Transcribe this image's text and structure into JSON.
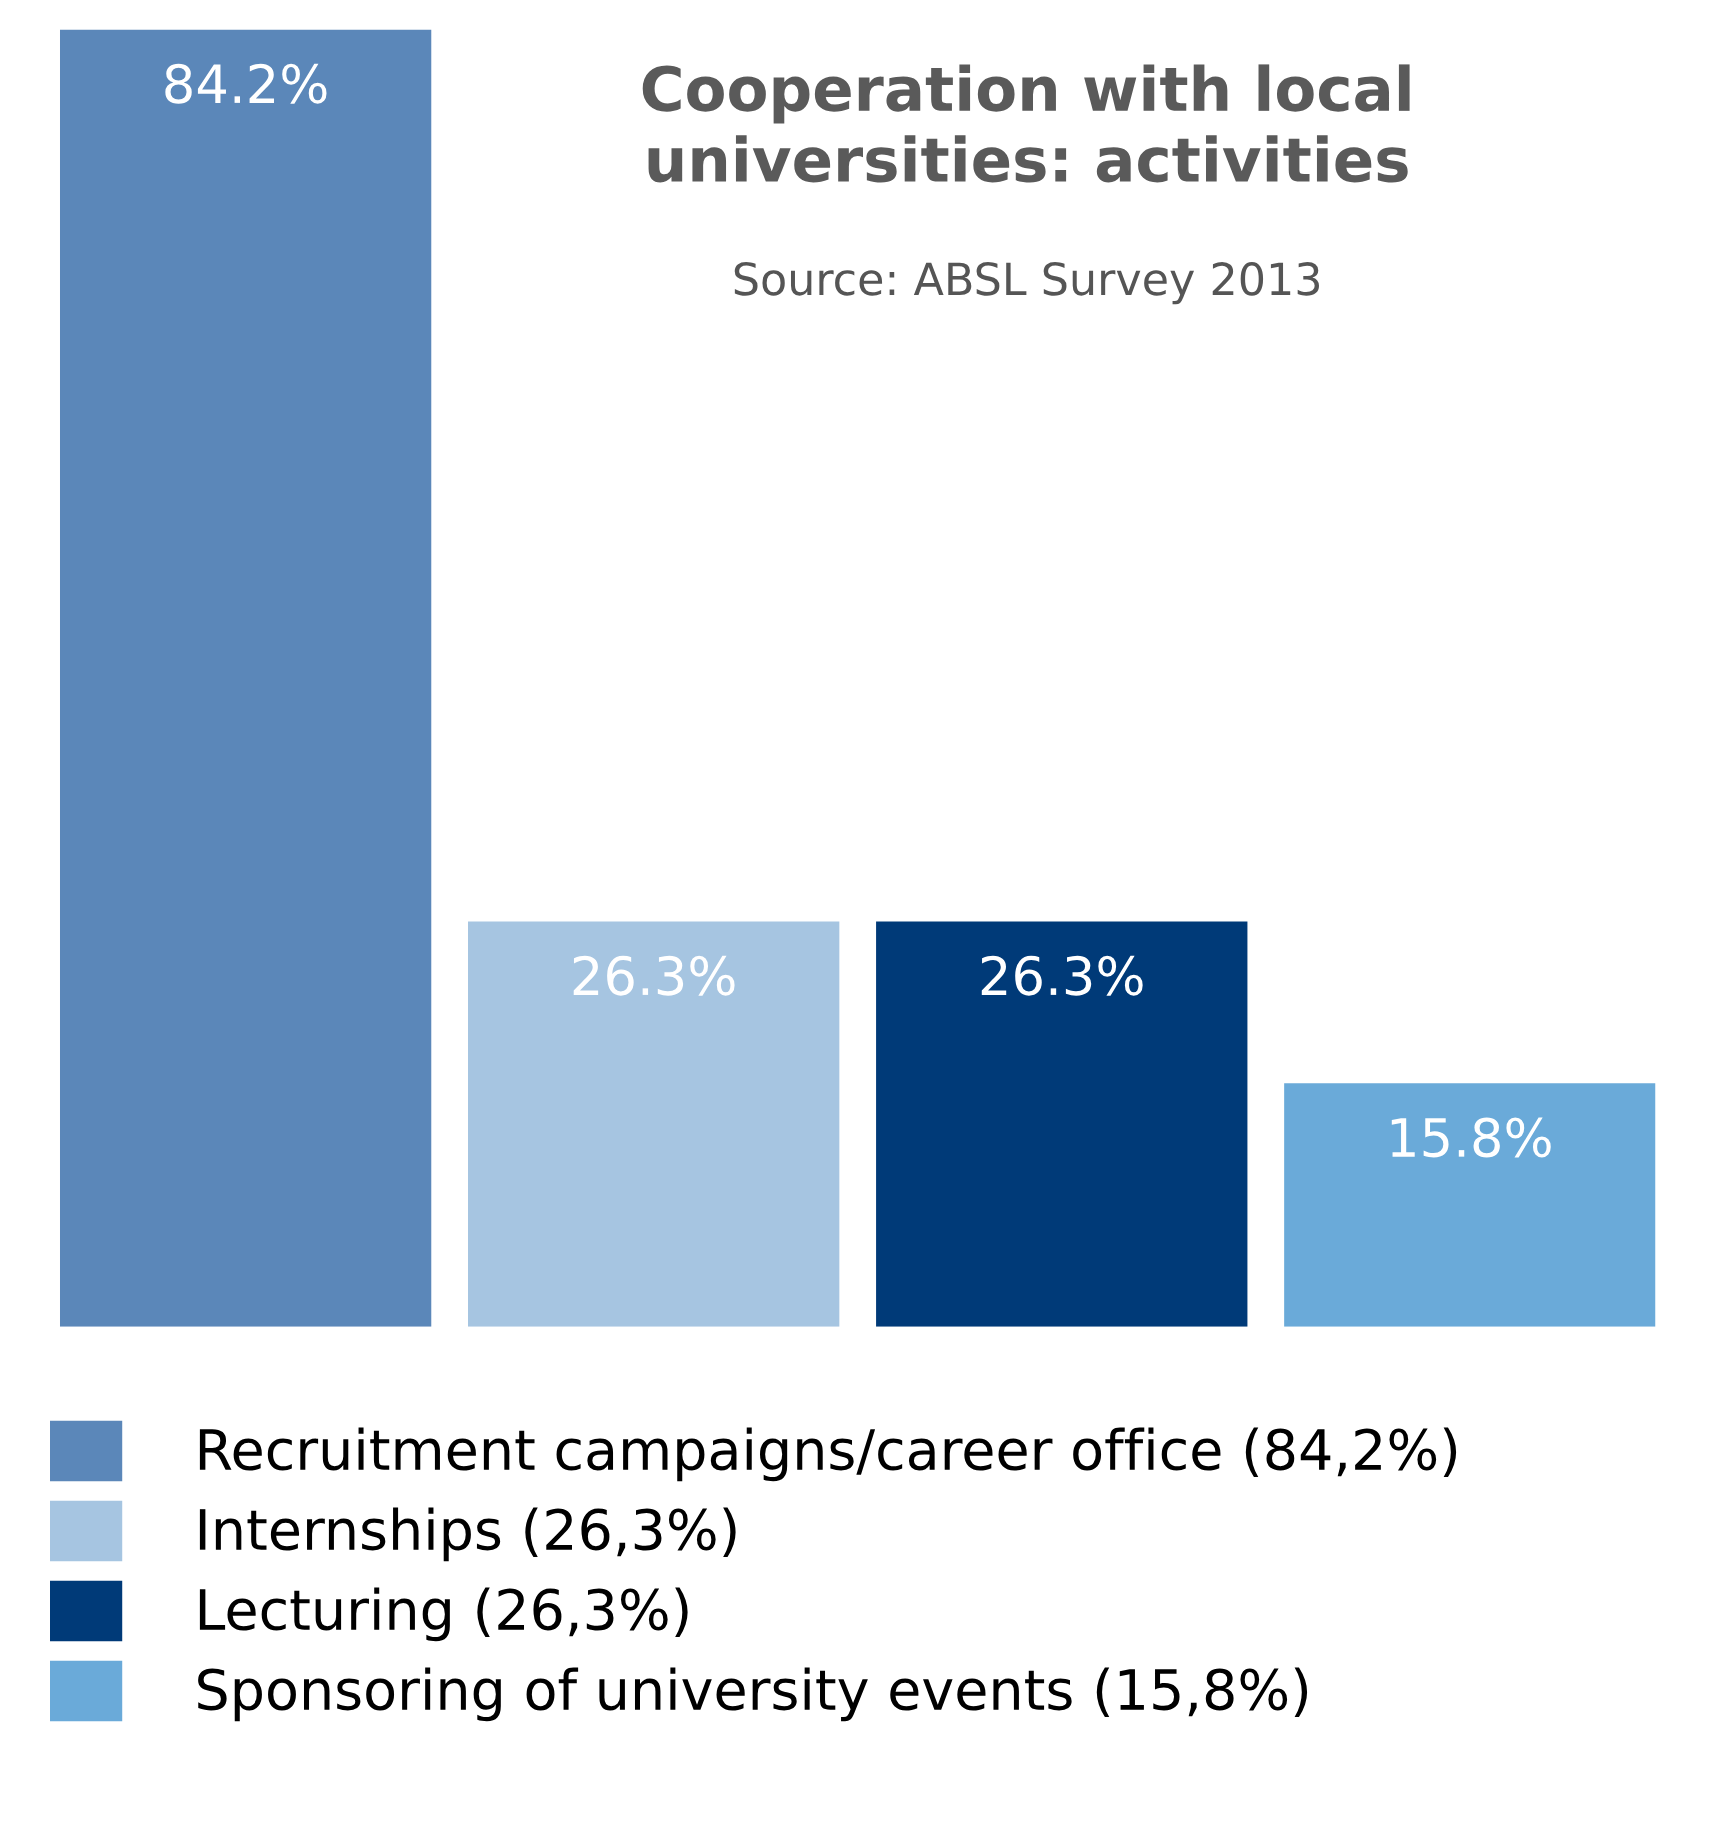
{
  "chart_data": {
    "type": "bar",
    "title": "Cooperation with local\nuniversities: activities",
    "annotations": [
      "Source: ABSL Survey 2013"
    ],
    "categories": [
      null
    ],
    "series": [
      {
        "name": "Recruitment campaigns/career office (84,2%)",
        "color": "#5b87b9",
        "values": [
          84.2
        ],
        "value_labels": [
          "84.2%"
        ]
      },
      {
        "name": "Internships (26,3%)",
        "color": "#a6c5e1",
        "values": [
          26.3
        ],
        "value_labels": [
          "26.3%"
        ]
      },
      {
        "name": "Lecturing (26,3%)",
        "color": "#003a78",
        "values": [
          26.3
        ],
        "value_labels": [
          "26.3%"
        ]
      },
      {
        "name": "Sponsoring of university events (15,8%)",
        "color": "#6aaad9",
        "values": [
          15.8
        ],
        "value_labels": [
          "15.8%"
        ]
      }
    ],
    "legend": "bottom"
  }
}
